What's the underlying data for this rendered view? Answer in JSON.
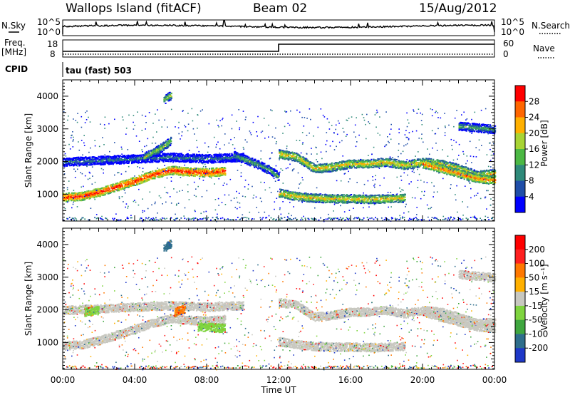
{
  "header": {
    "station": "Wallops Island (fitACF)",
    "beam": "Beam 02",
    "date": "15/Aug/2012"
  },
  "top_panels": {
    "nsky_label": "N.Sky",
    "nsearch_label": "N.Search",
    "freq_label_line1": "Freq.",
    "freq_label_line2": "[MHz]",
    "nave_label": "Nave",
    "cpid_label": "CPID",
    "cpid_value": "tau (fast) 503",
    "noise_ticks_left": [
      "10^5",
      "10^0"
    ],
    "noise_ticks_right": [
      "10^5",
      "10^0"
    ],
    "freq_ticks": [
      "18",
      "8"
    ],
    "nave_ticks": [
      "60",
      "0"
    ]
  },
  "chart_data": [
    {
      "type": "heatmap",
      "name": "power",
      "ylabel": "Slant Range [km]",
      "xlabel": "",
      "ylim": [
        180,
        4500
      ],
      "yticks": [
        "1000",
        "2000",
        "3000",
        "4000"
      ],
      "colorbar": {
        "label": "Power [dB]",
        "ticks": [
          "4",
          "8",
          "12",
          "16",
          "20",
          "24",
          "28"
        ],
        "colors": [
          "#0000ff",
          "#1f4ea8",
          "#2f8a7a",
          "#4cb844",
          "#a8d434",
          "#ffb000",
          "#ff6600",
          "#ff0000"
        ]
      },
      "bands": [
        {
          "t": [
            0,
            1,
            2,
            3,
            4,
            5,
            5.5,
            6,
            7,
            8,
            9
          ],
          "r": [
            920,
            950,
            1080,
            1250,
            1420,
            1620,
            1680,
            1750,
            1700,
            1680,
            1720
          ],
          "level": 7
        },
        {
          "t": [
            0,
            2,
            4,
            6,
            8,
            10
          ],
          "r": [
            2000,
            2050,
            2100,
            2150,
            2100,
            2150
          ],
          "level": 2
        },
        {
          "t": [
            4.5,
            5,
            5.5,
            6
          ],
          "r": [
            2150,
            2300,
            2450,
            2650
          ],
          "level": 4
        },
        {
          "t": [
            9.5,
            10.5,
            11.5,
            12
          ],
          "r": [
            2200,
            2000,
            1750,
            1550
          ],
          "level": 3
        },
        {
          "t": [
            12,
            13,
            14,
            15,
            16,
            17,
            18,
            19,
            20,
            21,
            22,
            23,
            24
          ],
          "r": [
            2250,
            2150,
            1800,
            1850,
            1950,
            1950,
            2000,
            1900,
            2000,
            1950,
            1800,
            1600,
            1650
          ],
          "level": 5
        },
        {
          "t": [
            12,
            13,
            14,
            15,
            16,
            17,
            18,
            19
          ],
          "r": [
            1050,
            950,
            900,
            880,
            880,
            860,
            880,
            900
          ],
          "level": 5
        },
        {
          "t": [
            20,
            21,
            22,
            23,
            24
          ],
          "r": [
            1950,
            1800,
            1650,
            1500,
            1450
          ],
          "level": 6
        },
        {
          "t": [
            5.6,
            6
          ],
          "r": [
            3900,
            4050
          ],
          "level": 4
        },
        {
          "t": [
            22,
            23,
            24
          ],
          "r": [
            3100,
            3050,
            3000
          ],
          "level": 3
        }
      ]
    },
    {
      "type": "heatmap",
      "name": "velocity",
      "ylabel": "Slant Range [km]",
      "xlabel": "Time UT",
      "ylim": [
        180,
        4500
      ],
      "yticks": [
        "1000",
        "2000",
        "3000",
        "4000"
      ],
      "xticks": [
        "00:00",
        "04:00",
        "08:00",
        "12:00",
        "16:00",
        "20:00",
        "00:00"
      ],
      "colorbar": {
        "label": "Velocity [m s⁻¹]",
        "ticks": [
          "200",
          "100",
          "50",
          "15",
          "-15",
          "-50",
          "-100",
          "-200"
        ],
        "colors": [
          "#1e38c8",
          "#2e6e8c",
          "#3fa63f",
          "#7fd43f",
          "#c8c8c0",
          "#ffb000",
          "#ff7800",
          "#ff2020",
          "#ff0000"
        ]
      },
      "bands": [
        {
          "t": [
            0,
            1,
            2,
            3,
            4,
            5,
            5.5,
            6,
            7,
            8,
            9
          ],
          "r": [
            920,
            950,
            1080,
            1250,
            1420,
            1620,
            1680,
            1750,
            1700,
            1680,
            1720
          ],
          "level": 4
        },
        {
          "t": [
            0,
            2,
            4,
            6,
            8,
            10
          ],
          "r": [
            2000,
            2050,
            2100,
            2150,
            2100,
            2150
          ],
          "level": 4
        },
        {
          "t": [
            1.2,
            2
          ],
          "r": [
            1950,
            2000
          ],
          "level": 3
        },
        {
          "t": [
            6.2,
            6.8
          ],
          "r": [
            1950,
            2050
          ],
          "level": 6
        },
        {
          "t": [
            7.5,
            9
          ],
          "r": [
            1500,
            1450
          ],
          "level": 3
        },
        {
          "t": [
            12,
            13,
            14,
            15,
            16,
            17,
            18,
            19,
            20,
            21,
            22,
            23,
            24
          ],
          "r": [
            2250,
            2150,
            1800,
            1850,
            1950,
            1950,
            2000,
            1900,
            2000,
            1950,
            1800,
            1600,
            1650
          ],
          "level": 4
        },
        {
          "t": [
            12,
            13,
            14,
            15,
            16,
            17,
            18,
            19
          ],
          "r": [
            1050,
            950,
            900,
            880,
            880,
            860,
            880,
            900
          ],
          "level": 4
        },
        {
          "t": [
            20,
            21,
            22,
            23,
            24
          ],
          "r": [
            1950,
            1800,
            1650,
            1500,
            1450
          ],
          "level": 4
        },
        {
          "t": [
            5.6,
            6
          ],
          "r": [
            3900,
            4050
          ],
          "level": 1
        },
        {
          "t": [
            22,
            23,
            24
          ],
          "r": [
            3100,
            3050,
            3000
          ],
          "level": 4
        }
      ]
    }
  ]
}
